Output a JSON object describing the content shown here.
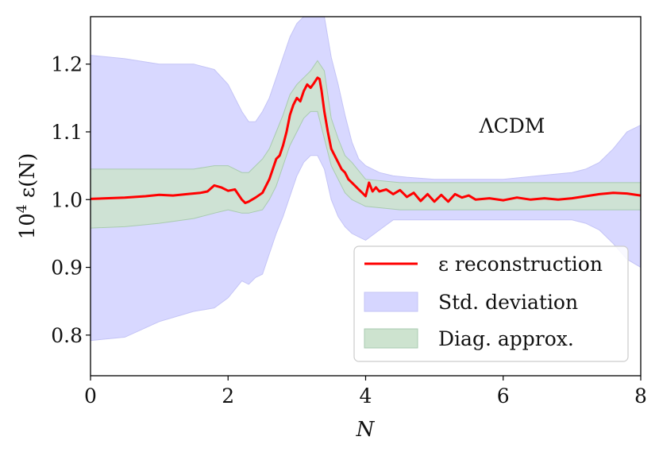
{
  "chart_data": {
    "type": "line",
    "title": "",
    "xlabel": "N",
    "ylabel": "10^4 ε(N)",
    "ylabel_parts": {
      "base": "10",
      "exp": "4",
      "rest": " ε(N)"
    },
    "xlim": [
      0,
      8
    ],
    "ylim": [
      0.74,
      1.27
    ],
    "x_ticks": [
      0,
      2,
      4,
      6,
      8
    ],
    "x_tick_labels": [
      "0",
      "2",
      "4",
      "6",
      "8"
    ],
    "y_ticks": [
      0.8,
      0.9,
      1.0,
      1.1,
      1.2
    ],
    "y_tick_labels": [
      "0.8",
      "0.9",
      "1.0",
      "1.1",
      "1.2"
    ],
    "grid": false,
    "annotation": "ΛCDM",
    "legend_position": "lower-right",
    "colors": {
      "reconstruction": "#ff0000",
      "std_fill": "#d6d6ff",
      "std_edge": "#c4c4f6",
      "diag_fill": "#cde3cf",
      "diag_edge": "#a9cbb0"
    },
    "series": [
      {
        "name": "ε reconstruction",
        "kind": "line",
        "x": [
          0,
          0.5,
          0.8,
          1.0,
          1.2,
          1.4,
          1.6,
          1.7,
          1.8,
          1.9,
          2.0,
          2.1,
          2.2,
          2.25,
          2.3,
          2.4,
          2.5,
          2.6,
          2.65,
          2.7,
          2.75,
          2.8,
          2.85,
          2.9,
          2.95,
          3.0,
          3.05,
          3.1,
          3.15,
          3.2,
          3.25,
          3.3,
          3.33,
          3.36,
          3.4,
          3.45,
          3.5,
          3.55,
          3.6,
          3.65,
          3.7,
          3.75,
          3.8,
          3.85,
          3.9,
          3.95,
          4.0,
          4.05,
          4.1,
          4.15,
          4.2,
          4.3,
          4.4,
          4.5,
          4.6,
          4.7,
          4.8,
          4.9,
          5.0,
          5.1,
          5.2,
          5.3,
          5.4,
          5.5,
          5.6,
          5.8,
          6.0,
          6.2,
          6.4,
          6.6,
          6.8,
          7.0,
          7.2,
          7.4,
          7.6,
          7.8,
          8.0
        ],
        "values": [
          1.001,
          1.003,
          1.005,
          1.007,
          1.006,
          1.008,
          1.01,
          1.012,
          1.021,
          1.018,
          1.013,
          1.015,
          1.0,
          0.995,
          0.997,
          1.003,
          1.01,
          1.03,
          1.045,
          1.06,
          1.065,
          1.08,
          1.1,
          1.125,
          1.14,
          1.15,
          1.145,
          1.16,
          1.17,
          1.165,
          1.172,
          1.18,
          1.178,
          1.16,
          1.13,
          1.1,
          1.075,
          1.065,
          1.055,
          1.045,
          1.04,
          1.03,
          1.025,
          1.02,
          1.015,
          1.01,
          1.005,
          1.025,
          1.012,
          1.018,
          1.012,
          1.015,
          1.008,
          1.014,
          1.004,
          1.01,
          0.998,
          1.008,
          0.997,
          1.007,
          0.997,
          1.008,
          1.003,
          1.006,
          1.0,
          1.002,
          0.999,
          1.003,
          1.0,
          1.002,
          1.0,
          1.002,
          1.005,
          1.008,
          1.01,
          1.009,
          1.006
        ]
      },
      {
        "name": "Std. deviation",
        "kind": "band",
        "x": [
          0,
          0.5,
          1.0,
          1.5,
          1.8,
          2.0,
          2.2,
          2.3,
          2.4,
          2.5,
          2.6,
          2.7,
          2.8,
          2.9,
          3.0,
          3.1,
          3.2,
          3.3,
          3.4,
          3.5,
          3.6,
          3.7,
          3.8,
          3.9,
          4.0,
          4.2,
          4.4,
          4.6,
          5.0,
          5.5,
          6.0,
          6.5,
          7.0,
          7.2,
          7.4,
          7.6,
          7.8,
          8.0
        ],
        "upper": [
          1.213,
          1.208,
          1.2,
          1.2,
          1.192,
          1.17,
          1.13,
          1.115,
          1.115,
          1.13,
          1.15,
          1.18,
          1.21,
          1.24,
          1.26,
          1.27,
          1.27,
          1.27,
          1.27,
          1.21,
          1.17,
          1.125,
          1.085,
          1.06,
          1.05,
          1.04,
          1.035,
          1.033,
          1.03,
          1.03,
          1.03,
          1.035,
          1.04,
          1.045,
          1.055,
          1.075,
          1.1,
          1.11
        ],
        "lower": [
          0.792,
          0.797,
          0.82,
          0.835,
          0.84,
          0.855,
          0.88,
          0.875,
          0.885,
          0.89,
          0.92,
          0.95,
          0.975,
          1.005,
          1.035,
          1.055,
          1.065,
          1.065,
          1.045,
          1.0,
          0.975,
          0.96,
          0.95,
          0.945,
          0.94,
          0.955,
          0.97,
          0.97,
          0.97,
          0.97,
          0.97,
          0.97,
          0.97,
          0.965,
          0.955,
          0.935,
          0.912,
          0.9
        ]
      },
      {
        "name": "Diag. approx.",
        "kind": "band",
        "x": [
          0,
          0.5,
          1.0,
          1.5,
          1.8,
          2.0,
          2.2,
          2.3,
          2.5,
          2.6,
          2.7,
          2.8,
          2.9,
          3.0,
          3.1,
          3.2,
          3.3,
          3.4,
          3.5,
          3.6,
          3.7,
          3.8,
          4.0,
          4.5,
          5.0,
          5.5,
          6.0,
          6.5,
          7.0,
          7.5,
          8.0
        ],
        "upper": [
          1.045,
          1.045,
          1.045,
          1.045,
          1.05,
          1.05,
          1.04,
          1.04,
          1.06,
          1.075,
          1.1,
          1.125,
          1.155,
          1.17,
          1.18,
          1.19,
          1.205,
          1.19,
          1.12,
          1.09,
          1.065,
          1.055,
          1.03,
          1.025,
          1.025,
          1.025,
          1.025,
          1.025,
          1.025,
          1.025,
          1.025
        ],
        "lower": [
          0.958,
          0.96,
          0.965,
          0.972,
          0.98,
          0.985,
          0.98,
          0.98,
          0.985,
          1.0,
          1.02,
          1.05,
          1.08,
          1.1,
          1.12,
          1.13,
          1.13,
          1.09,
          1.05,
          1.03,
          1.01,
          1.0,
          0.99,
          0.985,
          0.985,
          0.985,
          0.985,
          0.985,
          0.985,
          0.985,
          0.985
        ]
      }
    ]
  }
}
